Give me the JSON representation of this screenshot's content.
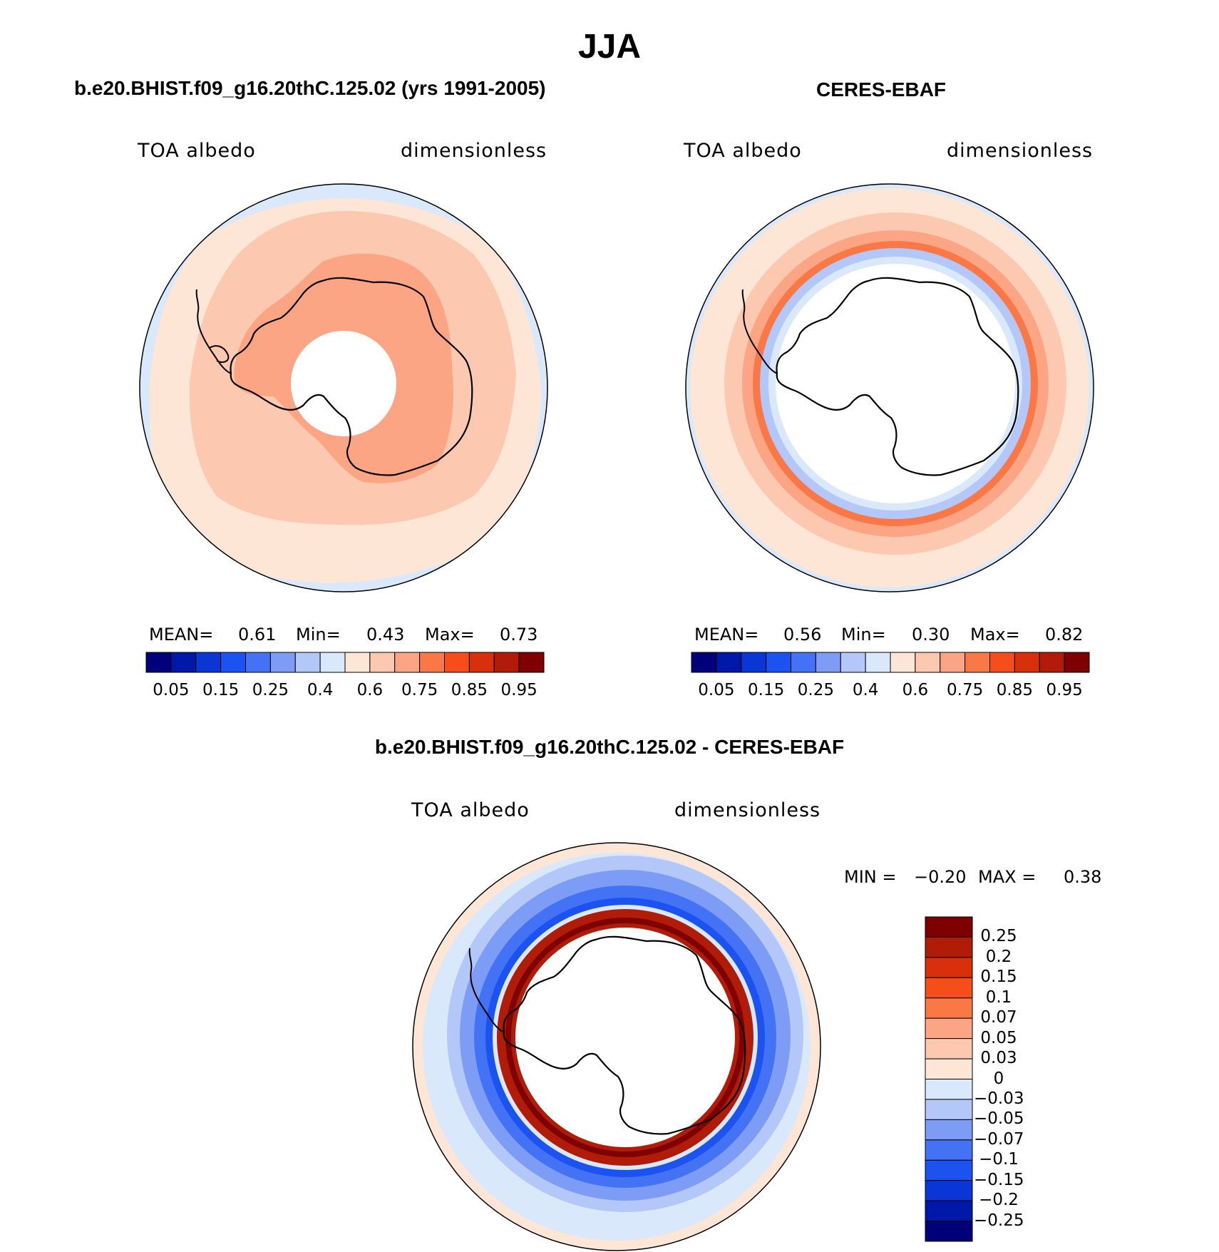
{
  "title": "JJA",
  "panels": [
    {
      "title": "b.e20.BHIST.f09_g16.20thC.125.02 (yrs 1991-2005)",
      "left_label": "TOA  albedo",
      "right_label": "dimensionless",
      "stats": {
        "mean_label": "MEAN=",
        "mean": "0.61",
        "min_label": "Min=",
        "min": "0.43",
        "max_label": "Max=",
        "max": "0.73"
      }
    },
    {
      "title": "CERES-EBAF",
      "left_label": "TOA  albedo",
      "right_label": "dimensionless",
      "stats": {
        "mean_label": "MEAN=",
        "mean": "0.56",
        "min_label": "Min=",
        "min": "0.30",
        "max_label": "Max=",
        "max": "0.82"
      }
    }
  ],
  "diff_panel": {
    "title": "b.e20.BHIST.f09_g16.20thC.125.02 - CERES-EBAF",
    "left_label": "TOA  albedo",
    "right_label": "dimensionless",
    "stats": {
      "min_label": "MIN =",
      "min": "−0.20",
      "max_label": "MAX =",
      "max": "0.38"
    }
  },
  "colorbar_top": {
    "colors": [
      "#00007a",
      "#0018a8",
      "#0a36d6",
      "#1c52f0",
      "#4472f4",
      "#7c9cf6",
      "#b3c8f8",
      "#d9e8fb",
      "#fde6d6",
      "#fcc8b0",
      "#fba585",
      "#f97846",
      "#f54e1a",
      "#d8300a",
      "#b01c08",
      "#7e0000"
    ],
    "labels": [
      "0.05",
      "0.15",
      "0.25",
      "0.4",
      "0.6",
      "0.75",
      "0.85",
      "0.95"
    ]
  },
  "colorbar_diff": {
    "colors": [
      "#7e0000",
      "#b01c08",
      "#d8300a",
      "#f54e1a",
      "#f97846",
      "#fba585",
      "#fcc8b0",
      "#fde6d6",
      "#d9e8fb",
      "#b3c8f8",
      "#7c9cf6",
      "#4472f4",
      "#1c52f0",
      "#0a36d6",
      "#0018a8",
      "#00007a"
    ],
    "labels": [
      "0.25",
      "0.2",
      "0.15",
      "0.1",
      "0.07",
      "0.05",
      "0.03",
      "0",
      "−0.03",
      "−0.05",
      "−0.07",
      "−0.1",
      "−0.15",
      "−0.2",
      "−0.25"
    ]
  }
}
